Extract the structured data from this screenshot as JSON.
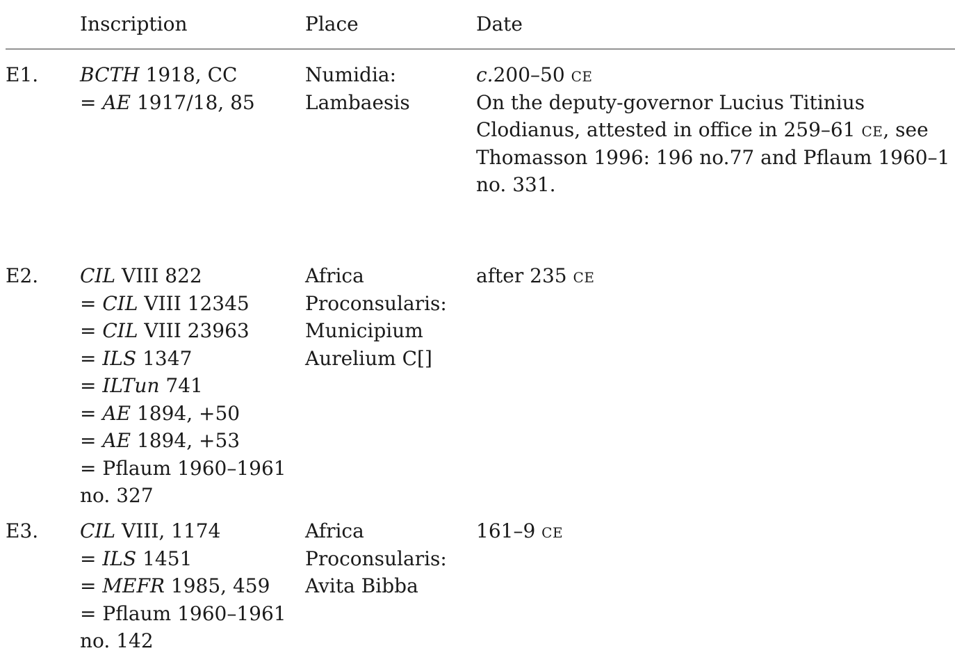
{
  "header": {
    "inscription": "Inscription",
    "place": "Place",
    "date": "Date"
  },
  "rows": [
    {
      "id": "E1.",
      "inscription": [
        {
          "italic": "BCTH",
          "rest": " 1918, CC"
        },
        {
          "prefix": "= ",
          "italic": "AE",
          "rest": " 1917/18, 85"
        }
      ],
      "place": [
        "Numidia:",
        "Lambaesis"
      ],
      "date": {
        "circa": "c.",
        "range": "200–50",
        "era": "CE",
        "note_lines": [
          {
            "text": "On the deputy-governor Lucius Titinius"
          },
          {
            "text": "Clodianus, attested in office in 259–61 ",
            "era": "CE",
            "after": ", see"
          },
          {
            "text": "Thomasson 1996: 196 no.77 and Pflaum 1960–1"
          },
          {
            "text": "no. 331."
          }
        ]
      }
    },
    {
      "id": "E2.",
      "inscription": [
        {
          "italic": "CIL",
          "rest": " VIII 822"
        },
        {
          "prefix": "= ",
          "italic": "CIL",
          "rest": " VIII 12345"
        },
        {
          "prefix": "= ",
          "italic": "CIL",
          "rest": " VIII 23963"
        },
        {
          "prefix": "= ",
          "italic": "ILS",
          "rest": " 1347"
        },
        {
          "prefix": "= ",
          "italic": "ILTun",
          "rest": " 741"
        },
        {
          "prefix": "= ",
          "italic": "AE",
          "rest": " 1894, +50"
        },
        {
          "prefix": "= ",
          "italic": "AE",
          "rest": " 1894, +53"
        },
        {
          "prefix": "= ",
          "italic": "",
          "rest": "Pflaum 1960–1961"
        },
        {
          "prefix": "",
          "italic": "",
          "rest": "no. 327"
        }
      ],
      "place": [
        "Africa",
        "Proconsularis:",
        "Municipium",
        "Aurelium C[]"
      ],
      "date": {
        "text": "after 235 ",
        "era": "CE"
      }
    },
    {
      "id": "E3.",
      "inscription": [
        {
          "italic": "CIL",
          "rest": " VIII, 1174"
        },
        {
          "prefix": "= ",
          "italic": "ILS",
          "rest": " 1451"
        },
        {
          "prefix": "= ",
          "italic": "MEFR",
          "rest": " 1985, 459"
        },
        {
          "prefix": "= ",
          "italic": "",
          "rest": "Pflaum 1960–1961"
        },
        {
          "prefix": "",
          "italic": "",
          "rest": "no. 142"
        }
      ],
      "place": [
        "Africa",
        "Proconsularis:",
        "Avita Bibba"
      ],
      "date": {
        "text": "161–9 ",
        "era": "CE"
      }
    }
  ]
}
